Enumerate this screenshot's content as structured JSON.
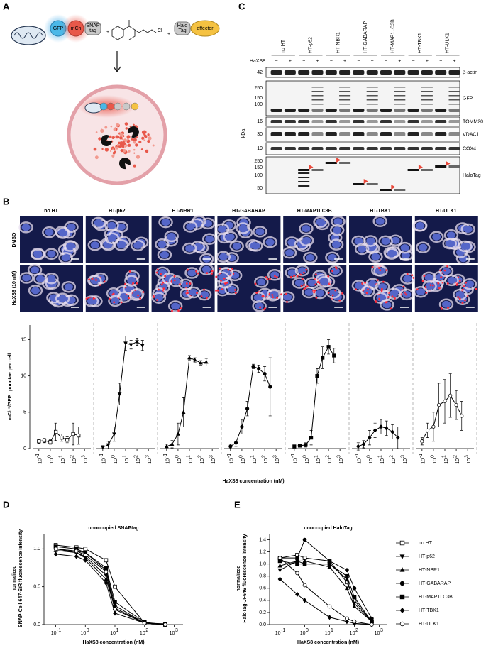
{
  "figure_a": {
    "label": "A",
    "gfp": "GFP",
    "mch": "mCh",
    "snap": [
      "SNAP",
      "tag"
    ],
    "cl": "Cl",
    "halo": [
      "Halo",
      "Tag"
    ],
    "effector": "effector"
  },
  "figure_b": {
    "label": "B",
    "columns": [
      "no HT",
      "HT-p62",
      "HT-NBR1",
      "HT-GABARAP",
      "HT-MAP1LC3B",
      "HT-TBK1",
      "HT-ULK1"
    ],
    "rows": [
      "DMSO",
      "HaXS8 (10 nM)"
    ]
  },
  "figure_c": {
    "label": "C",
    "columns": [
      "no HT",
      "HT-p62",
      "HT-NBR1",
      "HT-GABARAP",
      "HT-MAP1LC3B",
      "HT-TBK1",
      "HT-ULK1"
    ],
    "treatment": "HaXS8",
    "minus": "−",
    "plus": "+",
    "kda_title": "kDa",
    "blots": [
      {
        "name": "β-actin",
        "kda": [
          "42"
        ]
      },
      {
        "name": "GFP",
        "kda": [
          "250",
          "150",
          "100"
        ]
      },
      {
        "name": "TOMM20",
        "kda": [
          "16"
        ]
      },
      {
        "name": "VDAC1",
        "kda": [
          "30"
        ]
      },
      {
        "name": "COX4",
        "kda": [
          "19"
        ]
      },
      {
        "name": "HaloTag",
        "kda": [
          "250",
          "150",
          "100",
          "50"
        ]
      }
    ]
  },
  "chart_data": [
    {
      "type": "line",
      "ylabel": "mCh⁺/GFP⁻ punctae per cell",
      "xlabel": "HaXS8 concentration (nM)",
      "log_x": true,
      "ylim": [
        0,
        17
      ],
      "yticks": [
        0,
        5,
        10,
        15
      ],
      "xlim": [
        0.05,
        2000
      ],
      "xticks": [
        {
          "value": 0.1,
          "label": "10",
          "exponent": "-1"
        },
        {
          "value": 1,
          "label": "10",
          "exponent": "0"
        },
        {
          "value": 10,
          "label": "10",
          "exponent": "1"
        },
        {
          "value": 100,
          "label": "10",
          "exponent": "2"
        },
        {
          "value": 1000,
          "label": "10",
          "exponent": "3"
        }
      ],
      "x": [
        0.1,
        0.3,
        1,
        3,
        10,
        30,
        100,
        300
      ],
      "color": "#000000",
      "series": [
        {
          "marker": "open-square",
          "values": [
            1.0,
            1.1,
            0.9,
            2.3,
            1.5,
            1.2,
            2.0,
            1.8
          ],
          "errors": [
            0.3,
            0.3,
            0.3,
            1.2,
            0.5,
            0.4,
            1.5,
            1.2
          ]
        },
        {
          "marker": "inverted-triangle",
          "values": [
            0.2,
            0.5,
            2,
            7.5,
            14.5,
            14.3,
            14.7,
            14.2
          ],
          "errors": [
            0.2,
            0.5,
            1,
            1.5,
            1,
            0.6,
            0.5,
            0.7
          ]
        },
        {
          "marker": "triangle",
          "values": [
            0.3,
            0.6,
            2,
            5,
            12.5,
            12.2,
            11.8,
            11.9
          ],
          "errors": [
            0.3,
            0.5,
            1.5,
            2,
            0.3,
            0.3,
            0.3,
            0.5
          ]
        },
        {
          "marker": "circle",
          "values": [
            0.3,
            0.8,
            3,
            5.5,
            11.3,
            11,
            10.3,
            8.5
          ],
          "errors": [
            0.3,
            0.5,
            1,
            1,
            0.3,
            0.5,
            1,
            4
          ]
        },
        {
          "marker": "square",
          "values": [
            0.3,
            0.4,
            0.5,
            1.5,
            10,
            12.5,
            14,
            12.8
          ],
          "errors": [
            0.2,
            0.2,
            0.3,
            1,
            1,
            1.5,
            1,
            1
          ]
        },
        {
          "marker": "diamond",
          "values": [
            0.3,
            0.6,
            1.5,
            2.5,
            3,
            2.8,
            2.3,
            1.5
          ],
          "errors": [
            0.5,
            0.5,
            1,
            1,
            1,
            1,
            1,
            1.5
          ]
        },
        {
          "marker": "open-circle",
          "values": [
            1,
            2.5,
            3,
            6,
            6.5,
            7.3,
            6,
            4.5
          ],
          "errors": [
            0.5,
            1,
            2,
            3,
            3,
            3,
            2,
            2
          ]
        }
      ]
    },
    {
      "type": "line",
      "label": "D",
      "title": "unoccupied SNAPtag",
      "ylabel": [
        "normalized",
        "SNAP-Cell 647-SiR fluorescence intensity"
      ],
      "xlabel": "HaXS8 concentration (nM)",
      "log_x": true,
      "ylim": [
        0,
        1.2
      ],
      "yticks": [
        {
          "value": 0,
          "label": "0.0"
        },
        0.5,
        {
          "value": 1,
          "label": "1.0"
        }
      ],
      "xlim": [
        0.05,
        2000
      ],
      "xticks": [
        {
          "value": 0.1,
          "label": "10",
          "exponent": "-1"
        },
        {
          "value": 1,
          "label": "10",
          "exponent": "0"
        },
        {
          "value": 10,
          "label": "10",
          "exponent": "1"
        },
        {
          "value": 100,
          "label": "10",
          "exponent": "2"
        },
        {
          "value": 1000,
          "label": "10",
          "exponent": "3"
        }
      ],
      "x": [
        0.1,
        0.5,
        1,
        5,
        10,
        100,
        500
      ],
      "color": "#000000",
      "series": [
        {
          "marker": "open-square",
          "values": [
            1.05,
            1.02,
            1.0,
            0.85,
            0.5,
            0.02,
            0.0
          ]
        },
        {
          "marker": "inverted-triangle",
          "values": [
            1.0,
            0.95,
            0.9,
            0.65,
            0.2,
            0.02,
            0.0
          ]
        },
        {
          "marker": "triangle",
          "values": [
            0.98,
            0.95,
            0.88,
            0.6,
            0.22,
            0.02,
            0.0
          ]
        },
        {
          "marker": "circle",
          "values": [
            1.0,
            0.97,
            0.95,
            0.72,
            0.25,
            0.02,
            0.01
          ]
        },
        {
          "marker": "square",
          "values": [
            1.03,
            1.0,
            0.95,
            0.75,
            0.3,
            0.03,
            0.0
          ]
        },
        {
          "marker": "diamond",
          "values": [
            0.93,
            0.9,
            0.85,
            0.55,
            0.15,
            0.02,
            0.0
          ]
        },
        {
          "marker": "open-circle",
          "values": [
            1.0,
            0.97,
            0.92,
            0.7,
            0.2,
            0.02,
            0.0
          ]
        }
      ]
    },
    {
      "type": "line",
      "label": "E",
      "title": "unoccupied HaloTag",
      "ylabel": [
        "normalized",
        "HaloTag-JF646 fluorescence intensity"
      ],
      "xlabel": "HaXS8 concentration (nM)",
      "log_x": true,
      "ylim": [
        0,
        1.5
      ],
      "yticks": [
        {
          "value": 0,
          "label": "0.0"
        },
        0.2,
        0.4,
        0.6,
        0.8,
        {
          "value": 1,
          "label": "1.0"
        },
        1.2,
        1.4
      ],
      "xlim": [
        0.05,
        2000
      ],
      "xticks": [
        {
          "value": 0.1,
          "label": "10",
          "exponent": "-1"
        },
        {
          "value": 1,
          "label": "10",
          "exponent": "0"
        },
        {
          "value": 10,
          "label": "10",
          "exponent": "1"
        },
        {
          "value": 100,
          "label": "10",
          "exponent": "2"
        },
        {
          "value": 1000,
          "label": "10",
          "exponent": "3"
        }
      ],
      "x": [
        0.1,
        0.5,
        1,
        10,
        50,
        100,
        500
      ],
      "color": "#000000",
      "series": [
        {
          "name": "no HT",
          "marker": "open-square",
          "values": [
            1.1,
            1.15,
            1.1,
            1.05,
            0.7,
            0.4,
            0.05
          ]
        },
        {
          "name": "HT-p62",
          "marker": "inverted-triangle",
          "values": [
            0.9,
            1.05,
            1.0,
            1.0,
            0.75,
            0.35,
            0.05
          ]
        },
        {
          "name": "HT-NBR1",
          "marker": "triangle",
          "values": [
            0.97,
            1.05,
            1.05,
            0.95,
            0.6,
            0.3,
            0.05
          ]
        },
        {
          "name": "HT-GABARAP",
          "marker": "circle",
          "values": [
            1.1,
            1.1,
            1.4,
            1.05,
            0.9,
            0.6,
            0.1
          ]
        },
        {
          "name": "HT-MAP1LC3B",
          "marker": "square",
          "values": [
            1.05,
            1.0,
            1.0,
            1.0,
            0.8,
            0.45,
            0.05
          ]
        },
        {
          "name": "HT-TBK1",
          "marker": "diamond",
          "values": [
            0.75,
            0.5,
            0.4,
            0.12,
            0.05,
            0.02,
            0.0
          ]
        },
        {
          "name": "HT-ULK1",
          "marker": "open-circle",
          "values": [
            1.1,
            0.85,
            0.65,
            0.3,
            0.1,
            0.05,
            0.0
          ]
        }
      ]
    }
  ]
}
